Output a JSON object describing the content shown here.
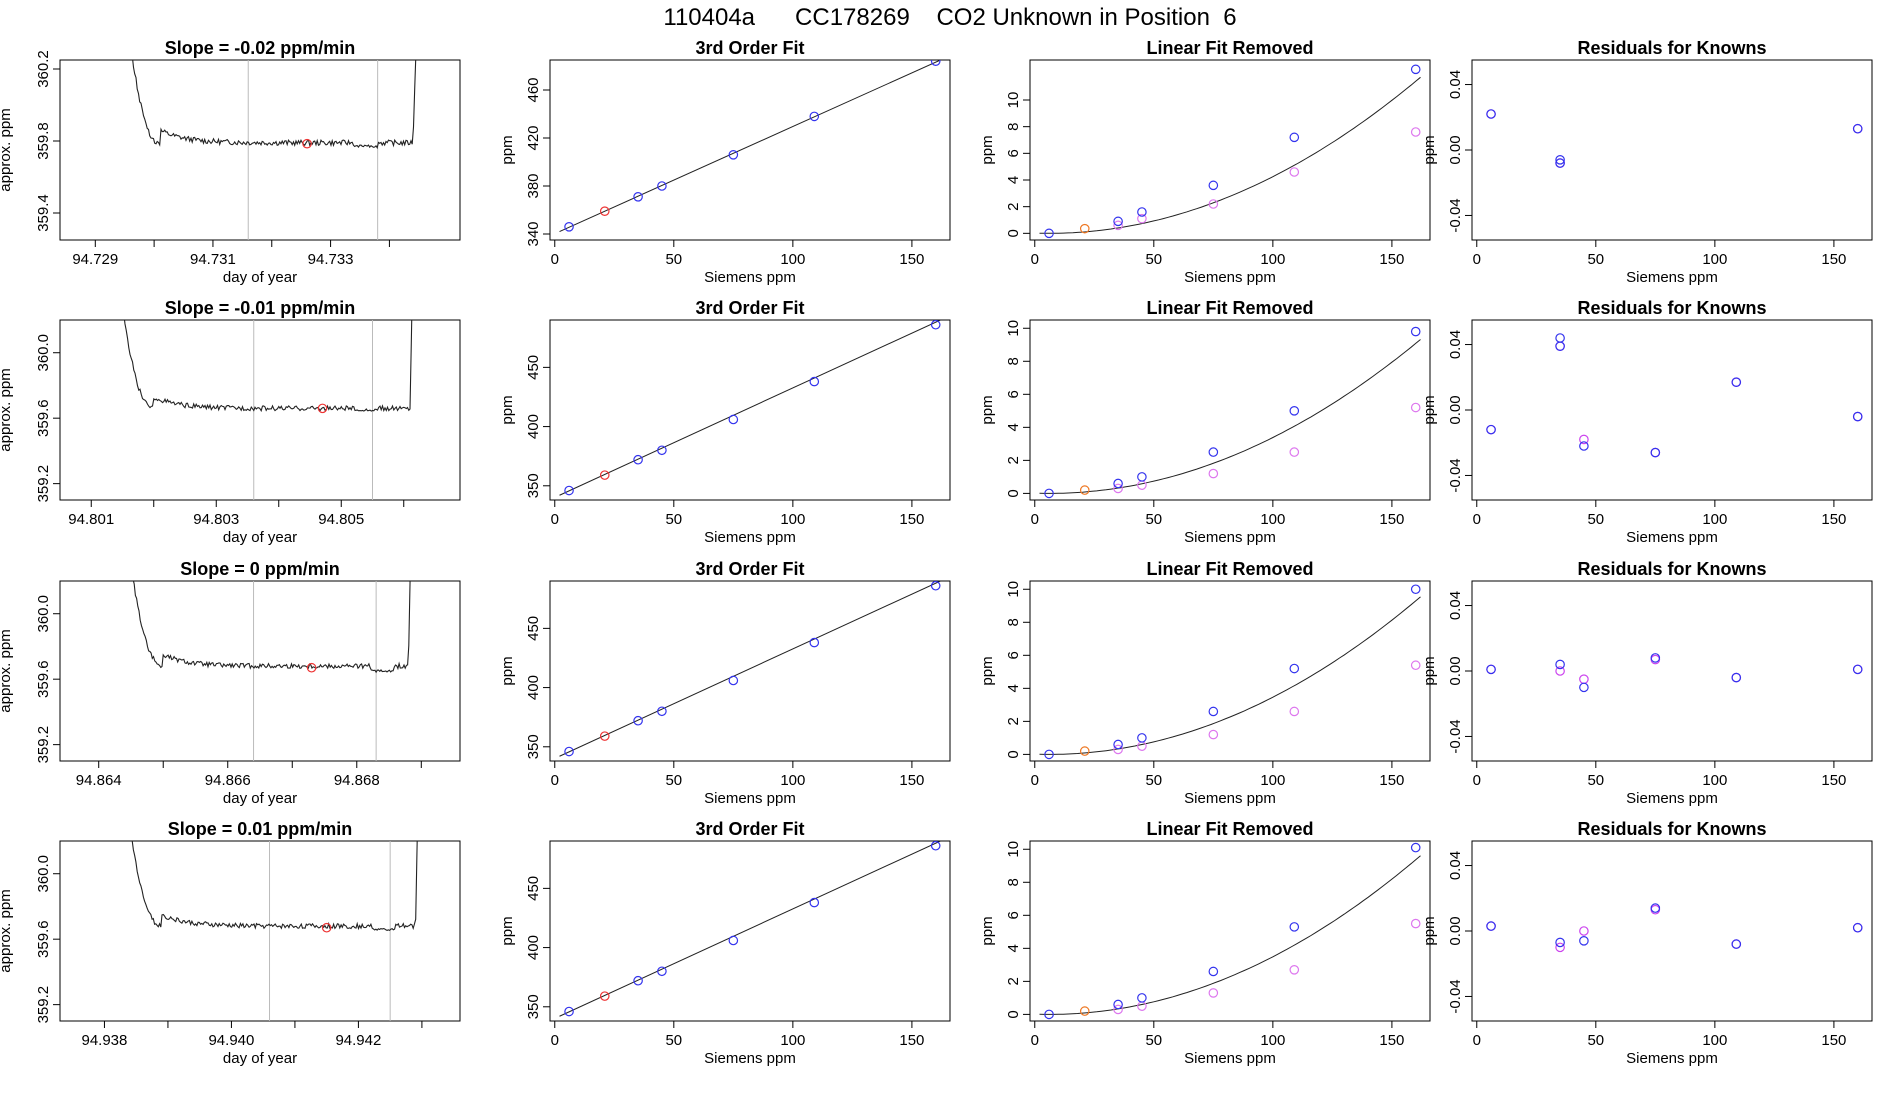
{
  "suptitle": "110404a      CC178269    CO2 Unknown in Position  6",
  "colors": {
    "known": "#3333ee",
    "unknown": "#ee3333",
    "unknown_lin": "#ee7722",
    "residual_alt": "#cc44ee",
    "linear_removed": "#dd77ee",
    "line": "#222222",
    "vline": "#bbbbbb"
  },
  "chart_data": [
    {
      "type": "line",
      "row": 0,
      "title": "Slope =  -0.02  ppm/min",
      "xlabel": "day of year",
      "ylabel": "approx. ppm",
      "xlim": [
        94.7284,
        94.7352
      ],
      "ylim": [
        359.25,
        360.25
      ],
      "xticks": [
        94.729,
        94.73,
        94.731,
        94.732,
        94.733,
        94.734
      ],
      "xtick_labels": [
        "94.729",
        "",
        "94.731",
        "",
        "94.733",
        ""
      ],
      "yticks": [
        359.4,
        359.8,
        360.2
      ],
      "ytick_labels": [
        "359.4",
        "359.8",
        "360.2"
      ],
      "vlines": [
        94.7316,
        94.7338
      ],
      "marker": {
        "x": 94.7326,
        "y": 359.785
      },
      "trace": {
        "x0": 94.7295,
        "x1": 94.7346,
        "base": 359.79,
        "spike_end": 94.7301,
        "spike_top": 360.6,
        "rise_start": 94.7344,
        "dip": [
          94.7336,
          359.77
        ]
      }
    },
    {
      "type": "scatter",
      "row": 0,
      "title": "3rd Order Fit",
      "xlabel": "Siemens ppm",
      "ylabel": "ppm",
      "xlim": [
        -2,
        166
      ],
      "ylim": [
        335,
        485
      ],
      "xticks": [
        0,
        50,
        100,
        150
      ],
      "yticks": [
        340,
        380,
        420,
        460
      ],
      "known_x": [
        6,
        35,
        45,
        75,
        109,
        160
      ],
      "known_y": [
        346,
        371,
        380,
        406,
        438,
        484
      ],
      "unknown": [
        [
          21,
          359
        ]
      ],
      "fit": [
        [
          2,
          342
        ],
        [
          162,
          485
        ]
      ]
    },
    {
      "type": "scatter",
      "row": 0,
      "title": "Linear Fit Removed",
      "xlabel": "Siemens ppm",
      "ylabel": "ppm",
      "xlim": [
        -2,
        166
      ],
      "ylim": [
        -0.5,
        13
      ],
      "xticks": [
        0,
        50,
        100,
        150
      ],
      "yticks": [
        0,
        2,
        4,
        6,
        8,
        10
      ],
      "known_x": [
        6,
        35,
        45,
        75,
        109,
        160
      ],
      "known_y": [
        0,
        0.9,
        1.6,
        3.6,
        7.2,
        12.3
      ],
      "unknown": [
        [
          21,
          0.35
        ]
      ],
      "alt_x": [
        35,
        45,
        75,
        109,
        160
      ],
      "alt_y": [
        0.6,
        1.1,
        2.2,
        4.6,
        7.6
      ],
      "curve_k": 0.000481
    },
    {
      "type": "scatter",
      "row": 0,
      "title": "Residuals for Knowns",
      "xlabel": "Siemens ppm",
      "ylabel": "ppm",
      "xlim": [
        -2,
        166
      ],
      "ylim": [
        -0.055,
        0.055
      ],
      "xticks": [
        0,
        50,
        100,
        150
      ],
      "yticks": [
        -0.04,
        0,
        0.04
      ],
      "ytick_labels": [
        "-0.04",
        "0.00",
        "0.04"
      ],
      "known_x": [
        6,
        35,
        35,
        160
      ],
      "known_y": [
        0.022,
        -0.006,
        -0.008,
        0.013
      ],
      "alt_x": [
        6,
        35,
        160
      ],
      "alt_y": [
        0.022,
        -0.008,
        0.013
      ]
    },
    {
      "type": "line",
      "row": 1,
      "title": "Slope =  -0.01  ppm/min",
      "xlabel": "day of year",
      "ylabel": "approx. ppm",
      "xlim": [
        94.8005,
        94.8069
      ],
      "ylim": [
        359.1,
        360.2
      ],
      "xticks": [
        94.801,
        94.802,
        94.803,
        94.804,
        94.805,
        94.806
      ],
      "xtick_labels": [
        "94.801",
        "",
        "94.803",
        "",
        "94.805",
        ""
      ],
      "yticks": [
        359.2,
        359.6,
        360.0
      ],
      "ytick_labels": [
        "359.2",
        "359.6",
        "360.0"
      ],
      "vlines": [
        94.8036,
        94.8055
      ],
      "marker": {
        "x": 94.8047,
        "y": 359.66
      },
      "trace": {
        "x0": 94.8014,
        "x1": 94.8062,
        "base": 359.66,
        "spike_end": 94.802,
        "spike_top": 360.6,
        "rise_start": 94.8061,
        "dip": [
          94.8054,
          359.65
        ]
      }
    },
    {
      "type": "scatter",
      "row": 1,
      "title": "3rd Order Fit",
      "xlabel": "Siemens ppm",
      "ylabel": "ppm",
      "xlim": [
        -2,
        166
      ],
      "ylim": [
        338,
        490
      ],
      "xticks": [
        0,
        50,
        100,
        150
      ],
      "yticks": [
        350,
        400,
        450
      ],
      "known_x": [
        6,
        35,
        45,
        75,
        109,
        160
      ],
      "known_y": [
        346,
        372,
        380,
        406,
        438,
        486
      ],
      "unknown": [
        [
          21,
          359
        ]
      ],
      "fit": [
        [
          2,
          342
        ],
        [
          162,
          490
        ]
      ]
    },
    {
      "type": "scatter",
      "row": 1,
      "title": "Linear Fit Removed",
      "xlabel": "Siemens ppm",
      "ylabel": "ppm",
      "xlim": [
        -2,
        166
      ],
      "ylim": [
        -0.4,
        10.5
      ],
      "xticks": [
        0,
        50,
        100,
        150
      ],
      "yticks": [
        0,
        2,
        4,
        6,
        8,
        10
      ],
      "known_x": [
        6,
        35,
        45,
        75,
        109,
        160
      ],
      "known_y": [
        0,
        0.6,
        1.0,
        2.5,
        5.0,
        9.8
      ],
      "unknown": [
        [
          21,
          0.2
        ]
      ],
      "alt_x": [
        35,
        45,
        75,
        109,
        160
      ],
      "alt_y": [
        0.3,
        0.5,
        1.2,
        2.5,
        5.2
      ],
      "curve_k": 0.000383
    },
    {
      "type": "scatter",
      "row": 1,
      "title": "Residuals for Knowns",
      "xlabel": "Siemens ppm",
      "ylabel": "ppm",
      "xlim": [
        -2,
        166
      ],
      "ylim": [
        -0.055,
        0.055
      ],
      "xticks": [
        0,
        50,
        100,
        150
      ],
      "yticks": [
        -0.04,
        0,
        0.04
      ],
      "ytick_labels": [
        "-0.04",
        "0.00",
        "0.04"
      ],
      "known_x": [
        6,
        35,
        35,
        45,
        75,
        109,
        160
      ],
      "known_y": [
        -0.012,
        0.044,
        0.039,
        -0.022,
        -0.026,
        0.017,
        -0.004
      ],
      "alt_x": [
        6,
        35,
        45,
        75,
        109,
        160
      ],
      "alt_y": [
        -0.012,
        0.039,
        -0.018,
        -0.026,
        0.017,
        -0.004
      ]
    },
    {
      "type": "line",
      "row": 2,
      "title": "Slope =  0  ppm/min",
      "xlabel": "day of year",
      "ylabel": "approx. ppm",
      "xlim": [
        94.8634,
        94.8696
      ],
      "ylim": [
        359.1,
        360.2
      ],
      "xticks": [
        94.864,
        94.865,
        94.866,
        94.867,
        94.868,
        94.869
      ],
      "xtick_labels": [
        "94.864",
        "",
        "94.866",
        "",
        "94.868",
        ""
      ],
      "yticks": [
        359.2,
        359.6,
        360.0
      ],
      "ytick_labels": [
        "359.2",
        "359.6",
        "360.0"
      ],
      "vlines": [
        94.8664,
        94.8683
      ],
      "marker": {
        "x": 94.8673,
        "y": 359.67
      },
      "trace": {
        "x0": 94.8644,
        "x1": 94.8689,
        "base": 359.68,
        "spike_end": 94.865,
        "spike_top": 360.6,
        "rise_start": 94.8688,
        "dip": [
          94.8684,
          359.65
        ]
      }
    },
    {
      "type": "scatter",
      "row": 2,
      "title": "3rd Order Fit",
      "xlabel": "Siemens ppm",
      "ylabel": "ppm",
      "xlim": [
        -2,
        166
      ],
      "ylim": [
        338,
        490
      ],
      "xticks": [
        0,
        50,
        100,
        150
      ],
      "yticks": [
        350,
        400,
        450
      ],
      "known_x": [
        6,
        35,
        45,
        75,
        109,
        160
      ],
      "known_y": [
        346,
        372,
        380,
        406,
        438,
        486
      ],
      "unknown": [
        [
          21,
          359
        ]
      ],
      "fit": [
        [
          2,
          342
        ],
        [
          162,
          490
        ]
      ]
    },
    {
      "type": "scatter",
      "row": 2,
      "title": "Linear Fit Removed",
      "xlabel": "Siemens ppm",
      "ylabel": "ppm",
      "xlim": [
        -2,
        166
      ],
      "ylim": [
        -0.4,
        10.5
      ],
      "xticks": [
        0,
        50,
        100,
        150
      ],
      "yticks": [
        0,
        2,
        4,
        6,
        8,
        10
      ],
      "known_x": [
        6,
        35,
        45,
        75,
        109,
        160
      ],
      "known_y": [
        0,
        0.6,
        1.0,
        2.6,
        5.2,
        10.0
      ],
      "unknown": [
        [
          21,
          0.2
        ]
      ],
      "alt_x": [
        35,
        45,
        75,
        109,
        160
      ],
      "alt_y": [
        0.3,
        0.5,
        1.2,
        2.6,
        5.4
      ],
      "curve_k": 0.000392
    },
    {
      "type": "scatter",
      "row": 2,
      "title": "Residuals for Knowns",
      "xlabel": "Siemens ppm",
      "ylabel": "ppm",
      "xlim": [
        -2,
        166
      ],
      "ylim": [
        -0.055,
        0.055
      ],
      "xticks": [
        0,
        50,
        100,
        150
      ],
      "yticks": [
        -0.04,
        0,
        0.04
      ],
      "ytick_labels": [
        "-0.04",
        "0.00",
        "0.04"
      ],
      "known_x": [
        6,
        35,
        45,
        75,
        109,
        160
      ],
      "known_y": [
        0.001,
        0.004,
        -0.01,
        0.008,
        -0.004,
        0.001
      ],
      "alt_x": [
        6,
        35,
        45,
        75,
        109,
        160
      ],
      "alt_y": [
        0.001,
        0.0,
        -0.005,
        0.007,
        -0.004,
        0.001
      ]
    },
    {
      "type": "line",
      "row": 3,
      "title": "Slope =  0.01  ppm/min",
      "xlabel": "day of year",
      "ylabel": "approx. ppm",
      "xlim": [
        94.9373,
        94.9436
      ],
      "ylim": [
        359.1,
        360.2
      ],
      "xticks": [
        94.938,
        94.939,
        94.94,
        94.941,
        94.942,
        94.943
      ],
      "xtick_labels": [
        "94.938",
        "",
        "94.940",
        "",
        "94.942",
        ""
      ],
      "yticks": [
        359.2,
        359.6,
        360.0
      ],
      "ytick_labels": [
        "359.2",
        "359.6",
        "360.0"
      ],
      "vlines": [
        94.9406,
        94.9425
      ],
      "marker": {
        "x": 94.9415,
        "y": 359.67
      },
      "trace": {
        "x0": 94.9383,
        "x1": 94.943,
        "base": 359.68,
        "spike_end": 94.9389,
        "spike_top": 360.6,
        "rise_start": 94.9429,
        "dip": [
          94.9424,
          359.66
        ]
      }
    },
    {
      "type": "scatter",
      "row": 3,
      "title": "3rd Order Fit",
      "xlabel": "Siemens ppm",
      "ylabel": "ppm",
      "xlim": [
        -2,
        166
      ],
      "ylim": [
        338,
        490
      ],
      "xticks": [
        0,
        50,
        100,
        150
      ],
      "yticks": [
        350,
        400,
        450
      ],
      "known_x": [
        6,
        35,
        45,
        75,
        109,
        160
      ],
      "known_y": [
        346,
        372,
        380,
        406,
        438,
        486
      ],
      "unknown": [
        [
          21,
          359
        ]
      ],
      "fit": [
        [
          2,
          342
        ],
        [
          162,
          490
        ]
      ]
    },
    {
      "type": "scatter",
      "row": 3,
      "title": "Linear Fit Removed",
      "xlabel": "Siemens ppm",
      "ylabel": "ppm",
      "xlim": [
        -2,
        166
      ],
      "ylim": [
        -0.4,
        10.5
      ],
      "xticks": [
        0,
        50,
        100,
        150
      ],
      "yticks": [
        0,
        2,
        4,
        6,
        8,
        10
      ],
      "known_x": [
        6,
        35,
        45,
        75,
        109,
        160
      ],
      "known_y": [
        0,
        0.6,
        1.0,
        2.6,
        5.3,
        10.1
      ],
      "unknown": [
        [
          21,
          0.2
        ]
      ],
      "alt_x": [
        35,
        45,
        75,
        109,
        160
      ],
      "alt_y": [
        0.3,
        0.5,
        1.3,
        2.7,
        5.5
      ],
      "curve_k": 0.000395
    },
    {
      "type": "scatter",
      "row": 3,
      "title": "Residuals for Knowns",
      "xlabel": "Siemens ppm",
      "ylabel": "ppm",
      "xlim": [
        -2,
        166
      ],
      "ylim": [
        -0.055,
        0.055
      ],
      "xticks": [
        0,
        50,
        100,
        150
      ],
      "yticks": [
        -0.04,
        0,
        0.04
      ],
      "ytick_labels": [
        "-0.04",
        "0.00",
        "0.04"
      ],
      "known_x": [
        6,
        35,
        45,
        75,
        109,
        160
      ],
      "known_y": [
        0.003,
        -0.007,
        -0.006,
        0.014,
        -0.008,
        0.002
      ],
      "alt_x": [
        6,
        35,
        45,
        75,
        109,
        160
      ],
      "alt_y": [
        0.003,
        -0.01,
        0.0,
        0.013,
        -0.008,
        0.002
      ]
    }
  ]
}
